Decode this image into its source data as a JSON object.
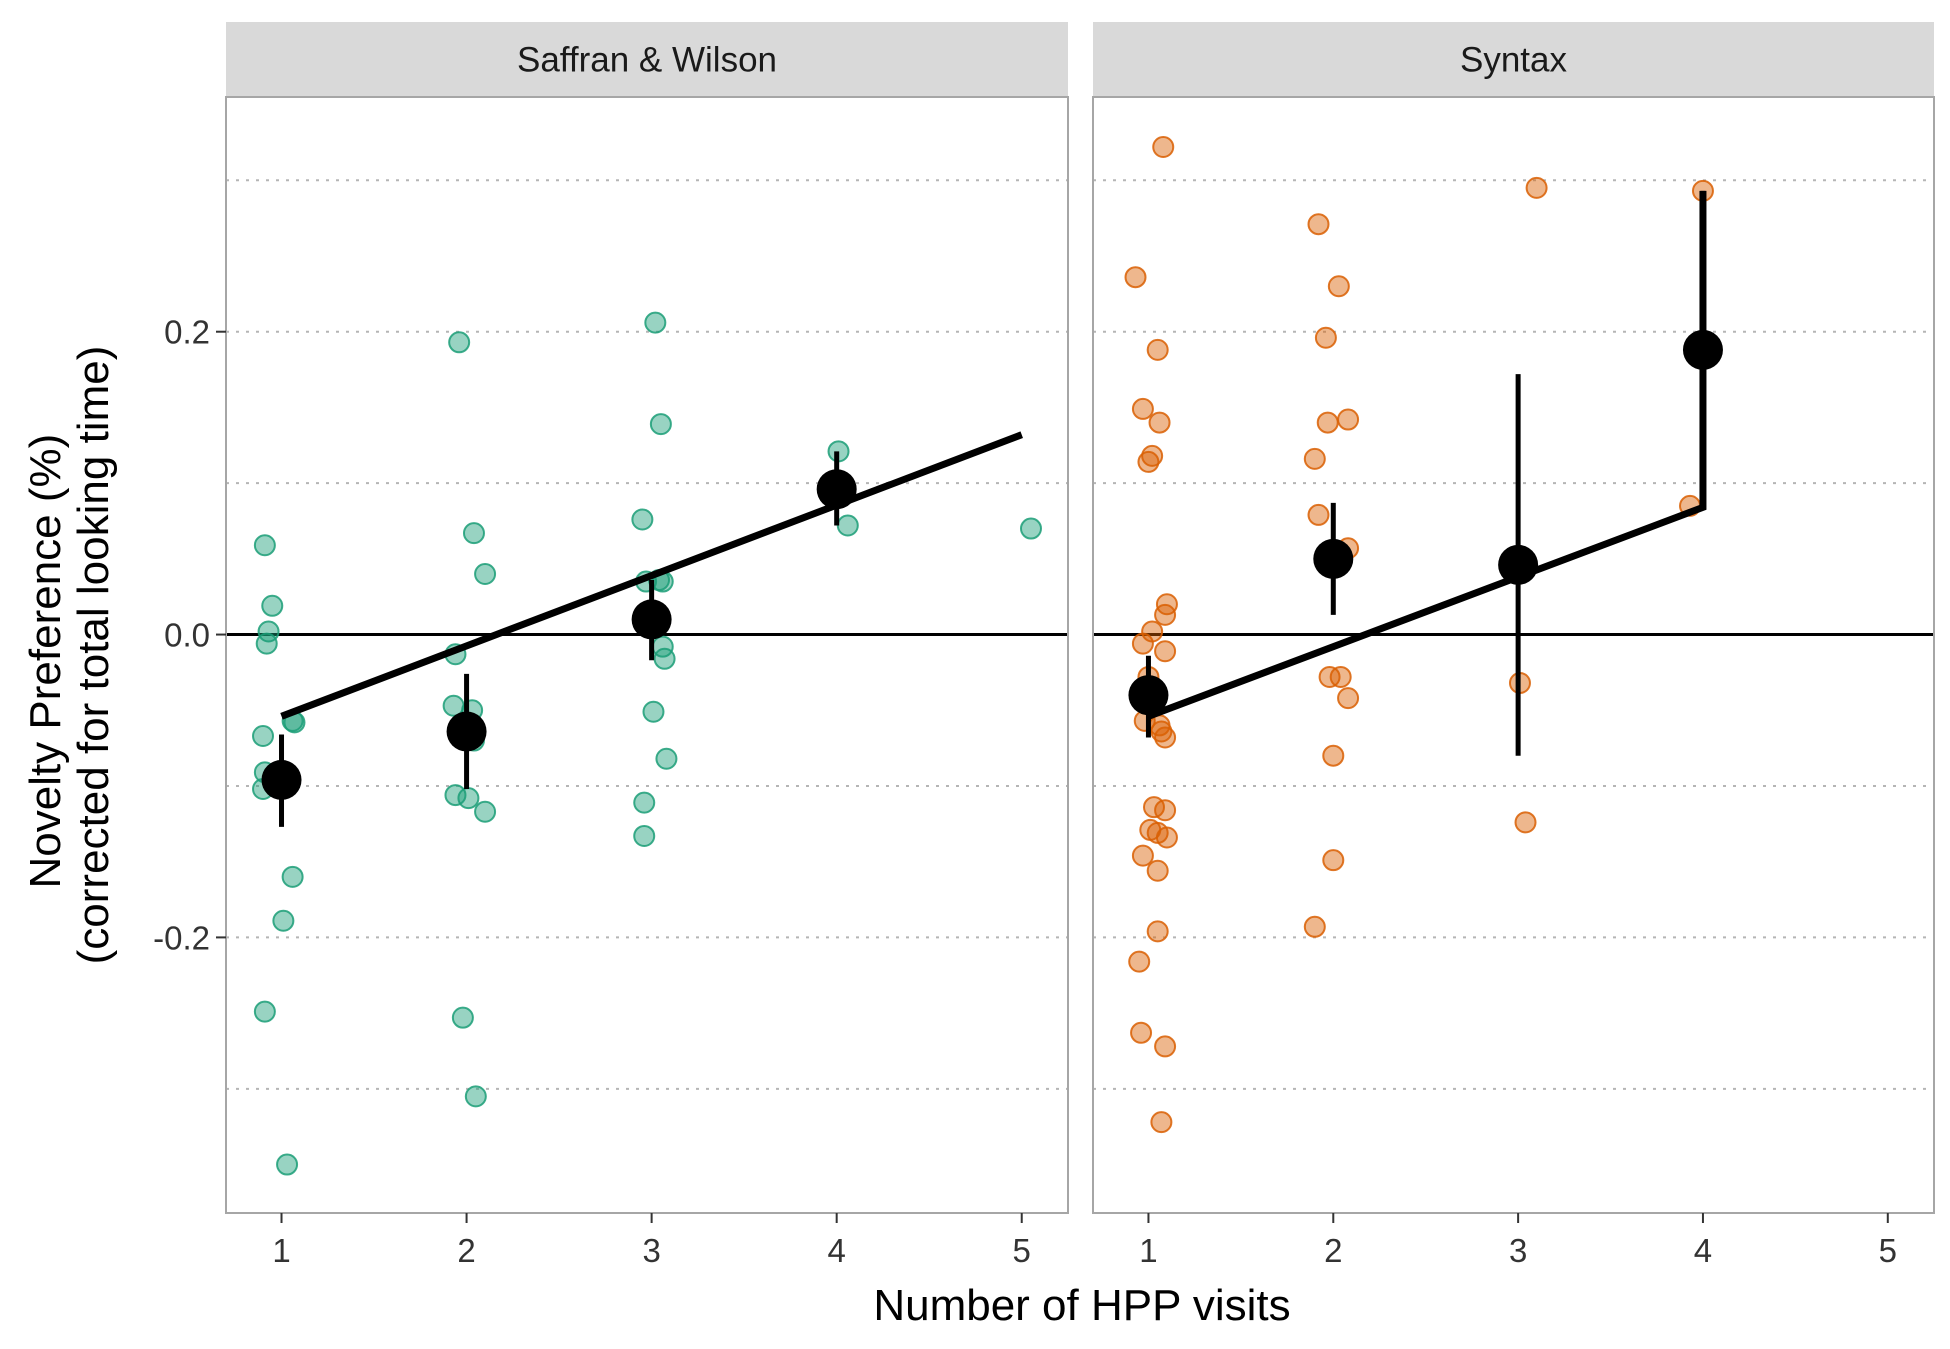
{
  "chart_data": {
    "type": "scatter",
    "xlabel": "Number of HPP visits",
    "ylabel_line1": "Novelty Preference (%)",
    "ylabel_line2": "(corrected for total looking time)",
    "xlim": [
      0.7,
      5.25
    ],
    "ylim": [
      -0.382,
      0.355
    ],
    "x_ticks": [
      "1",
      "2",
      "3",
      "4",
      "5"
    ],
    "y_ticks": [
      "-0.2",
      "0.0",
      "0.2"
    ],
    "y_tick_values": [
      -0.2,
      0.0,
      0.2
    ],
    "minor_gridlines_y": [
      -0.3,
      -0.1,
      0.1,
      0.3
    ],
    "reference_line_y": 0.0,
    "grid": true,
    "legend": "none",
    "panels": [
      {
        "strip_label": "Saffran & Wilson",
        "point_color": "#1b9e77",
        "points": [
          {
            "x": 0.91,
            "y": 0.059
          },
          {
            "x": 0.95,
            "y": 0.019
          },
          {
            "x": 0.93,
            "y": 0.002
          },
          {
            "x": 0.92,
            "y": -0.006
          },
          {
            "x": 0.9,
            "y": -0.067
          },
          {
            "x": 0.91,
            "y": -0.091
          },
          {
            "x": 0.9,
            "y": -0.102
          },
          {
            "x": 1.06,
            "y": -0.057
          },
          {
            "x": 1.07,
            "y": -0.058
          },
          {
            "x": 1.06,
            "y": -0.16
          },
          {
            "x": 1.01,
            "y": -0.189
          },
          {
            "x": 0.91,
            "y": -0.249
          },
          {
            "x": 1.03,
            "y": -0.35
          },
          {
            "x": 1.96,
            "y": 0.193
          },
          {
            "x": 2.04,
            "y": 0.067
          },
          {
            "x": 2.1,
            "y": 0.04
          },
          {
            "x": 1.94,
            "y": -0.013
          },
          {
            "x": 1.93,
            "y": -0.047
          },
          {
            "x": 2.03,
            "y": -0.05
          },
          {
            "x": 2.04,
            "y": -0.07
          },
          {
            "x": 1.94,
            "y": -0.106
          },
          {
            "x": 2.01,
            "y": -0.108
          },
          {
            "x": 2.1,
            "y": -0.117
          },
          {
            "x": 1.98,
            "y": -0.253
          },
          {
            "x": 2.05,
            "y": -0.305
          },
          {
            "x": 3.02,
            "y": 0.206
          },
          {
            "x": 3.05,
            "y": 0.139
          },
          {
            "x": 2.95,
            "y": 0.076
          },
          {
            "x": 2.97,
            "y": 0.035
          },
          {
            "x": 3.04,
            "y": 0.036
          },
          {
            "x": 3.06,
            "y": 0.035
          },
          {
            "x": 3.06,
            "y": -0.008
          },
          {
            "x": 3.07,
            "y": -0.016
          },
          {
            "x": 3.01,
            "y": -0.051
          },
          {
            "x": 3.08,
            "y": -0.082
          },
          {
            "x": 2.96,
            "y": -0.111
          },
          {
            "x": 2.96,
            "y": -0.133
          },
          {
            "x": 4.01,
            "y": 0.121
          },
          {
            "x": 4.06,
            "y": 0.072
          },
          {
            "x": 5.05,
            "y": 0.07
          }
        ],
        "means": [
          {
            "x": 1,
            "y": -0.096,
            "lo": -0.127,
            "hi": -0.066
          },
          {
            "x": 2,
            "y": -0.064,
            "lo": -0.102,
            "hi": -0.026
          },
          {
            "x": 3,
            "y": 0.01,
            "lo": -0.017,
            "hi": 0.036
          },
          {
            "x": 4,
            "y": 0.096,
            "lo": 0.072,
            "hi": 0.121
          }
        ],
        "fit_line": {
          "x": [
            1,
            5
          ],
          "y": [
            -0.054,
            0.132
          ]
        }
      },
      {
        "strip_label": "Syntax",
        "point_color": "#d95f02",
        "points": [
          {
            "x": 1.08,
            "y": 0.322
          },
          {
            "x": 0.93,
            "y": 0.236
          },
          {
            "x": 1.05,
            "y": 0.188
          },
          {
            "x": 0.97,
            "y": 0.149
          },
          {
            "x": 1.06,
            "y": 0.14
          },
          {
            "x": 1.02,
            "y": 0.118
          },
          {
            "x": 1.0,
            "y": 0.114
          },
          {
            "x": 1.1,
            "y": 0.02
          },
          {
            "x": 1.09,
            "y": 0.013
          },
          {
            "x": 1.02,
            "y": 0.002
          },
          {
            "x": 0.97,
            "y": -0.006
          },
          {
            "x": 1.09,
            "y": -0.011
          },
          {
            "x": 1.0,
            "y": -0.028
          },
          {
            "x": 0.98,
            "y": -0.057
          },
          {
            "x": 1.06,
            "y": -0.06
          },
          {
            "x": 1.07,
            "y": -0.064
          },
          {
            "x": 1.09,
            "y": -0.068
          },
          {
            "x": 1.03,
            "y": -0.114
          },
          {
            "x": 1.09,
            "y": -0.116
          },
          {
            "x": 1.01,
            "y": -0.129
          },
          {
            "x": 1.05,
            "y": -0.131
          },
          {
            "x": 1.1,
            "y": -0.134
          },
          {
            "x": 0.97,
            "y": -0.146
          },
          {
            "x": 1.05,
            "y": -0.156
          },
          {
            "x": 1.05,
            "y": -0.196
          },
          {
            "x": 0.95,
            "y": -0.216
          },
          {
            "x": 0.96,
            "y": -0.263
          },
          {
            "x": 1.09,
            "y": -0.272
          },
          {
            "x": 1.07,
            "y": -0.322
          },
          {
            "x": 1.92,
            "y": 0.271
          },
          {
            "x": 2.03,
            "y": 0.23
          },
          {
            "x": 1.96,
            "y": 0.196
          },
          {
            "x": 1.97,
            "y": 0.14
          },
          {
            "x": 2.08,
            "y": 0.142
          },
          {
            "x": 1.9,
            "y": 0.116
          },
          {
            "x": 1.92,
            "y": 0.079
          },
          {
            "x": 2.08,
            "y": 0.057
          },
          {
            "x": 1.98,
            "y": -0.028
          },
          {
            "x": 2.04,
            "y": -0.028
          },
          {
            "x": 2.08,
            "y": -0.042
          },
          {
            "x": 2.0,
            "y": -0.08
          },
          {
            "x": 2.0,
            "y": -0.149
          },
          {
            "x": 1.9,
            "y": -0.193
          },
          {
            "x": 3.1,
            "y": 0.295
          },
          {
            "x": 3.01,
            "y": -0.032
          },
          {
            "x": 3.04,
            "y": -0.124
          },
          {
            "x": 4.0,
            "y": 0.293
          },
          {
            "x": 3.93,
            "y": 0.085
          }
        ],
        "means": [
          {
            "x": 1,
            "y": -0.04,
            "lo": -0.068,
            "hi": -0.014
          },
          {
            "x": 2,
            "y": 0.05,
            "lo": 0.013,
            "hi": 0.087
          },
          {
            "x": 3,
            "y": 0.046,
            "lo": -0.08,
            "hi": 0.172
          },
          {
            "x": 4,
            "y": 0.188,
            "lo": 0.084,
            "hi": 0.293
          }
        ],
        "fit_line": {
          "x": [
            1,
            4,
            4
          ],
          "y": [
            -0.054,
            0.084,
            0.293
          ]
        }
      }
    ]
  }
}
